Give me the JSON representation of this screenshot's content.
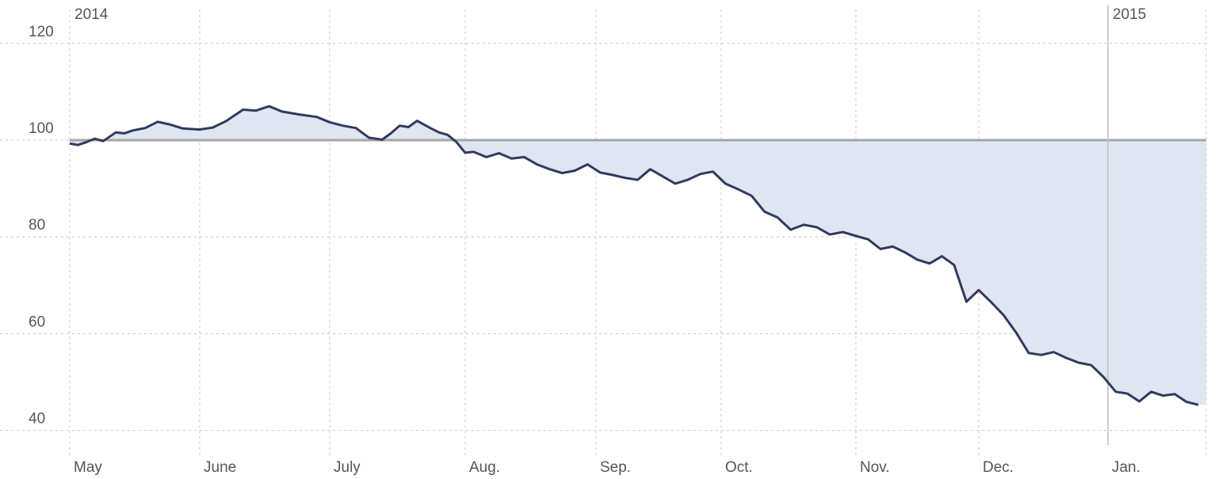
{
  "chart_data": {
    "type": "area",
    "title": "",
    "xlabel": "",
    "ylabel": "",
    "ylim": [
      37,
      127
    ],
    "baseline": 100,
    "grid": true,
    "legend": "none",
    "yticks": [
      "120",
      "100",
      "80",
      "60",
      "40"
    ],
    "ytick_values": [
      120,
      100,
      80,
      60,
      40
    ],
    "xticks": [
      "May",
      "June",
      "July",
      "Aug.",
      "Sep.",
      "Oct.",
      "Nov.",
      "Dec.",
      "Jan."
    ],
    "year_labels": [
      {
        "text": "2014",
        "date": "2014-05-01"
      },
      {
        "text": "2015",
        "date": "2015-01-01"
      }
    ],
    "colors": {
      "line": "#2f3b5c",
      "fill": "#dfe6f1",
      "baseline": "#a6a6a6",
      "grid": "#c8c8c8",
      "year_divider": "#b9c4b9"
    },
    "series": [
      {
        "x": [
          "2014-05-01",
          "2014-05-03",
          "2014-05-05",
          "2014-05-07",
          "2014-05-09",
          "2014-05-12",
          "2014-05-14",
          "2014-05-16",
          "2014-05-19",
          "2014-05-22",
          "2014-05-25",
          "2014-05-28",
          "2014-06-01",
          "2014-06-04",
          "2014-06-07",
          "2014-06-11",
          "2014-06-14",
          "2014-06-17",
          "2014-06-20",
          "2014-06-24",
          "2014-06-28",
          "2014-07-01",
          "2014-07-04",
          "2014-07-07",
          "2014-07-10",
          "2014-07-13",
          "2014-07-15",
          "2014-07-17",
          "2014-07-19",
          "2014-07-21",
          "2014-07-24",
          "2014-07-26",
          "2014-07-28",
          "2014-07-30",
          "2014-08-01",
          "2014-08-03",
          "2014-08-06",
          "2014-08-09",
          "2014-08-12",
          "2014-08-15",
          "2014-08-18",
          "2014-08-21",
          "2014-08-24",
          "2014-08-27",
          "2014-08-30",
          "2014-09-02",
          "2014-09-05",
          "2014-09-08",
          "2014-09-11",
          "2014-09-14",
          "2014-09-17",
          "2014-09-20",
          "2014-09-23",
          "2014-09-26",
          "2014-09-29",
          "2014-10-02",
          "2014-10-05",
          "2014-10-08",
          "2014-10-11",
          "2014-10-14",
          "2014-10-17",
          "2014-10-20",
          "2014-10-23",
          "2014-10-26",
          "2014-10-29",
          "2014-11-01",
          "2014-11-04",
          "2014-11-07",
          "2014-11-10",
          "2014-11-13",
          "2014-11-16",
          "2014-11-19",
          "2014-11-22",
          "2014-11-25",
          "2014-11-28",
          "2014-12-01",
          "2014-12-04",
          "2014-12-07",
          "2014-12-10",
          "2014-12-13",
          "2014-12-16",
          "2014-12-19",
          "2014-12-22",
          "2014-12-25",
          "2014-12-28",
          "2014-12-31",
          "2015-01-03",
          "2015-01-06",
          "2015-01-09",
          "2015-01-12",
          "2015-01-15",
          "2015-01-18",
          "2015-01-21",
          "2015-01-24"
        ],
        "y": [
          99.3,
          99.0,
          99.6,
          100.3,
          99.8,
          101.6,
          101.4,
          102.0,
          102.5,
          103.8,
          103.2,
          102.4,
          102.2,
          102.6,
          103.9,
          106.3,
          106.1,
          107.0,
          105.9,
          105.3,
          104.8,
          103.7,
          103.0,
          102.5,
          100.5,
          100.1,
          101.4,
          103.0,
          102.7,
          104.0,
          102.5,
          101.6,
          101.1,
          99.6,
          97.4,
          97.6,
          96.5,
          97.3,
          96.2,
          96.5,
          95.0,
          94.0,
          93.2,
          93.7,
          95.0,
          93.3,
          92.8,
          92.2,
          91.8,
          94.0,
          92.5,
          91.0,
          91.8,
          93.0,
          93.5,
          91.0,
          89.8,
          88.5,
          85.2,
          84.0,
          81.5,
          82.5,
          82.0,
          80.5,
          81.0,
          80.2,
          79.5,
          77.5,
          78.0,
          76.8,
          75.3,
          74.5,
          76.0,
          74.2,
          66.6,
          69.0,
          66.5,
          63.8,
          60.2,
          56.0,
          55.6,
          56.2,
          55.0,
          54.0,
          53.5,
          51.0,
          48.0,
          47.6,
          46.0,
          48.0,
          47.2,
          47.5,
          45.9,
          45.3
        ]
      }
    ]
  }
}
